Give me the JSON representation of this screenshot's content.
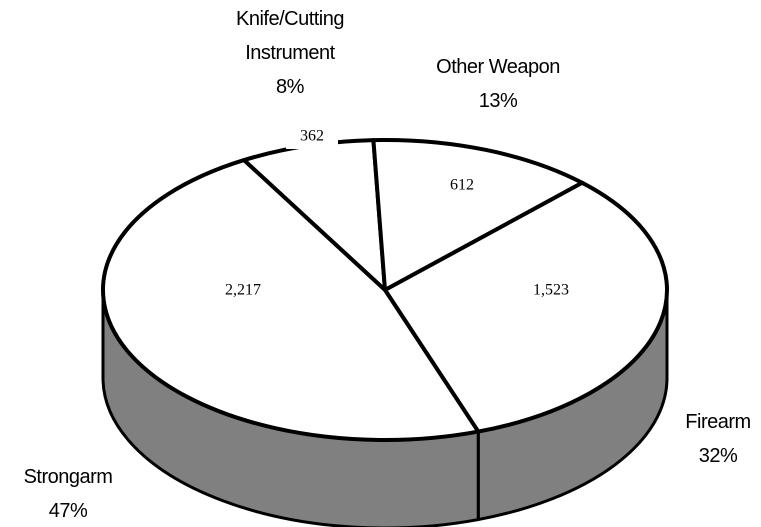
{
  "chart_data": {
    "type": "pie3d",
    "categories": [
      "Knife/Cutting Instrument",
      "Other Weapon",
      "Firearm",
      "Strongarm"
    ],
    "values": [
      362,
      612,
      1523,
      2217
    ],
    "value_labels": [
      "362",
      "612",
      "1,523",
      "2,217"
    ],
    "percents": [
      8,
      13,
      32,
      47
    ],
    "percent_labels": [
      "8%",
      "13%",
      "32%",
      "47%"
    ],
    "top_color": "#ffffff",
    "side_color": "#808080"
  }
}
